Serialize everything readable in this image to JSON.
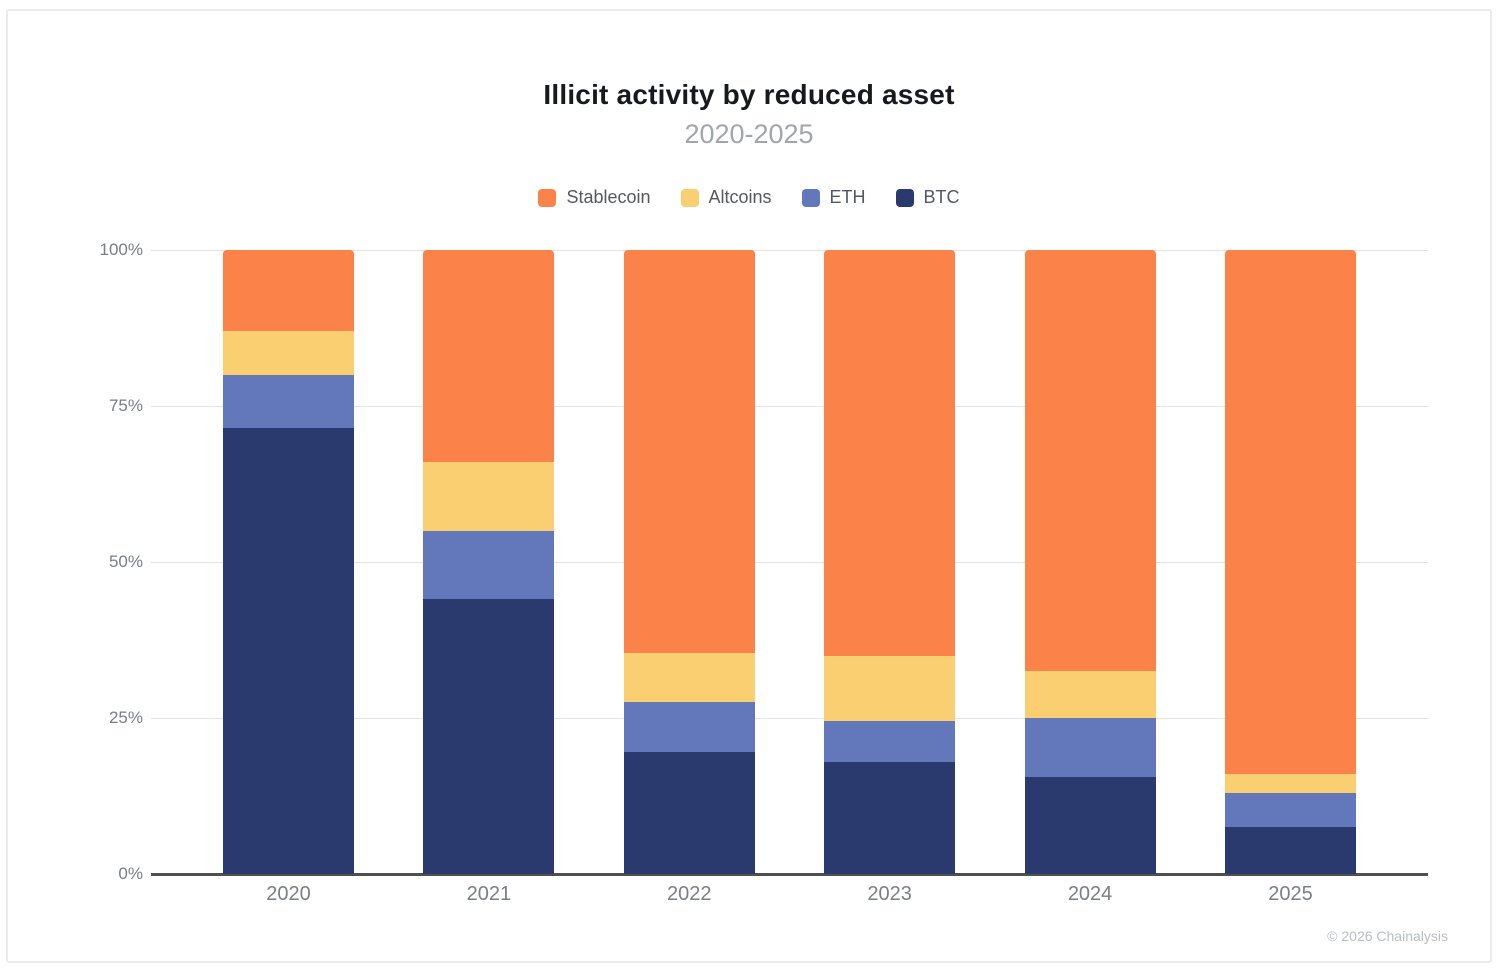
{
  "header": {
    "title": "Illicit activity by reduced asset",
    "subtitle": "2020-2025"
  },
  "legend": {
    "items": [
      {
        "label": "Stablecoin",
        "color": "#FB8249"
      },
      {
        "label": "Altcoins",
        "color": "#FACF72"
      },
      {
        "label": "ETH",
        "color": "#6278BA"
      },
      {
        "label": "BTC",
        "color": "#2A396E"
      }
    ]
  },
  "chart_data": {
    "type": "bar",
    "stacked": true,
    "title": "Illicit activity by reduced asset",
    "subtitle": "2020-2025",
    "categories": [
      "2020",
      "2021",
      "2022",
      "2023",
      "2024",
      "2025"
    ],
    "series": [
      {
        "name": "BTC",
        "color": "#2A396E",
        "values": [
          71.5,
          44.0,
          19.5,
          18.0,
          15.5,
          7.5
        ]
      },
      {
        "name": "ETH",
        "color": "#6278BA",
        "values": [
          8.5,
          11.0,
          8.0,
          6.5,
          9.5,
          5.5
        ]
      },
      {
        "name": "Altcoins",
        "color": "#FACF72",
        "values": [
          7.0,
          11.0,
          8.0,
          10.5,
          7.5,
          3.0
        ]
      },
      {
        "name": "Stablecoin",
        "color": "#FB8249",
        "values": [
          13.0,
          34.0,
          64.5,
          65.0,
          67.5,
          84.0
        ]
      }
    ],
    "ylabel": "",
    "xlabel": "",
    "ylim": [
      0,
      100
    ],
    "y_ticks": [
      "100%",
      "75%",
      "50%",
      "25%",
      "0%"
    ],
    "y_tick_values": [
      100,
      75,
      50,
      25,
      0
    ],
    "grid": true,
    "legend_position": "top",
    "units": "percent"
  },
  "footer": {
    "copyright": "© 2026 Chainalysis"
  }
}
